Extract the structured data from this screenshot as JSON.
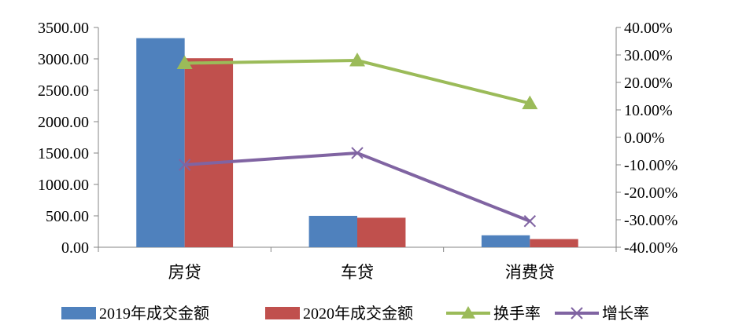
{
  "chart_data": {
    "type": "bar",
    "categories": [
      "房贷",
      "车贷",
      "消费贷"
    ],
    "series": [
      {
        "name": "2019年成交金额",
        "kind": "bar",
        "axis": "left",
        "color": "#4F81BD",
        "values": [
          3330,
          500,
          190
        ]
      },
      {
        "name": "2020年成交金额",
        "kind": "bar",
        "axis": "left",
        "color": "#C0504D",
        "values": [
          3010,
          470,
          130
        ]
      },
      {
        "name": "换手率",
        "kind": "line",
        "axis": "right",
        "marker": "triangle",
        "color": "#9BBB59",
        "values": [
          0.27,
          0.28,
          0.124
        ]
      },
      {
        "name": "增长率",
        "kind": "line",
        "axis": "right",
        "marker": "x",
        "color": "#8064A2",
        "values": [
          -0.1,
          -0.057,
          -0.305
        ]
      }
    ],
    "y_left": {
      "ylim": [
        0,
        3500
      ],
      "ticks": [
        0,
        500,
        1000,
        1500,
        2000,
        2500,
        3000,
        3500
      ],
      "tick_labels": [
        "0.00",
        "500.00",
        "1000.00",
        "1500.00",
        "2000.00",
        "2500.00",
        "3000.00",
        "3500.00"
      ]
    },
    "y_right": {
      "ylim": [
        -0.4,
        0.4
      ],
      "ticks": [
        -0.4,
        -0.3,
        -0.2,
        -0.1,
        0,
        0.1,
        0.2,
        0.3,
        0.4
      ],
      "tick_labels": [
        "-40.00%",
        "-30.00%",
        "-20.00%",
        "-10.00%",
        "0.00%",
        "10.00%",
        "20.00%",
        "30.00%",
        "40.00%"
      ]
    },
    "grid": false,
    "legend": "bottom",
    "title": "",
    "xlabel": "",
    "ylabel": ""
  }
}
